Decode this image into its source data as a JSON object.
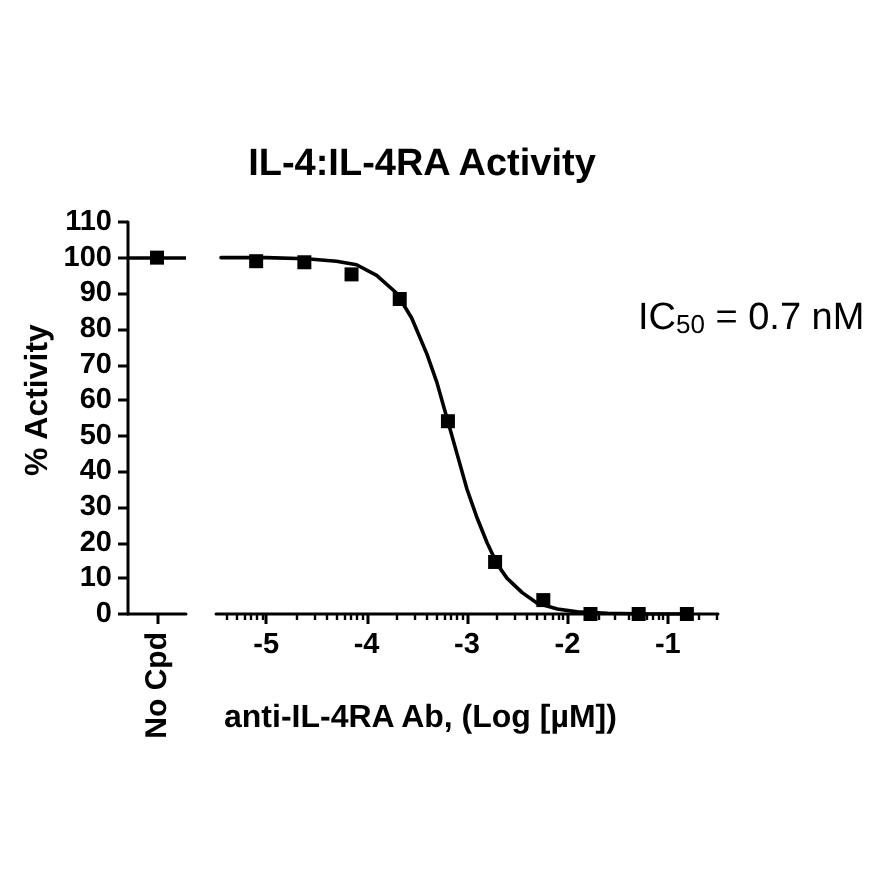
{
  "chart_data": [
    {
      "type": "scatter",
      "ylabel": "% Activity",
      "categories": [
        "No Cpd"
      ],
      "values": [
        100
      ],
      "color": "#000000",
      "marker": "square",
      "ylim": [
        0,
        110
      ],
      "yticks": [
        0,
        10,
        20,
        30,
        40,
        50,
        60,
        70,
        80,
        90,
        100,
        110
      ],
      "ref_lines": [
        {
          "axis": "y",
          "value": 100,
          "color": "#000000"
        }
      ]
    },
    {
      "type": "scatter",
      "title": "IL-4:IL-4RA Activity",
      "xlabel": "anti-IL-4RA Ab, (Log [µM])",
      "annotations": [
        "IC$_{50}$ = 0.7 nM"
      ],
      "xlim": [
        -5.5,
        -0.5
      ],
      "ylim": [
        0,
        110
      ],
      "tick_labels": "x",
      "xticks": [
        {
          "value": -5.398,
          "label": null
        },
        {
          "value": -5.301,
          "label": null
        },
        {
          "value": -5.222,
          "label": null
        },
        {
          "value": -5.155,
          "label": null
        },
        {
          "value": -5.097,
          "label": null
        },
        {
          "value": -5.046,
          "label": null
        },
        -5,
        {
          "value": -4.699,
          "label": null
        },
        {
          "value": -4.523,
          "label": null
        },
        {
          "value": -4.398,
          "label": null
        },
        {
          "value": -4.301,
          "label": null
        },
        {
          "value": -4.222,
          "label": null
        },
        {
          "value": -4.155,
          "label": null
        },
        {
          "value": -4.097,
          "label": null
        },
        {
          "value": -4.046,
          "label": null
        },
        -4,
        {
          "value": -3.699,
          "label": null
        },
        {
          "value": -3.523,
          "label": null
        },
        {
          "value": -3.398,
          "label": null
        },
        {
          "value": -3.301,
          "label": null
        },
        {
          "value": -3.222,
          "label": null
        },
        {
          "value": -3.155,
          "label": null
        },
        {
          "value": -3.097,
          "label": null
        },
        {
          "value": -3.046,
          "label": null
        },
        -3,
        {
          "value": -2.699,
          "label": null
        },
        {
          "value": -2.523,
          "label": null
        },
        {
          "value": -2.398,
          "label": null
        },
        {
          "value": -2.301,
          "label": null
        },
        {
          "value": -2.222,
          "label": null
        },
        {
          "value": -2.155,
          "label": null
        },
        {
          "value": -2.097,
          "label": null
        },
        {
          "value": -2.046,
          "label": null
        },
        -2,
        {
          "value": -1.699,
          "label": null
        },
        {
          "value": -1.523,
          "label": null
        },
        {
          "value": -1.398,
          "label": null
        },
        {
          "value": -1.301,
          "label": null
        },
        {
          "value": -1.222,
          "label": null
        },
        {
          "value": -1.155,
          "label": null
        },
        {
          "value": -1.097,
          "label": null
        },
        {
          "value": -1.046,
          "label": null
        },
        -1,
        {
          "value": -0.699,
          "label": null
        },
        {
          "value": -0.523,
          "label": null
        }
      ],
      "series": [
        {
          "marker": "square",
          "color": "#000000",
          "x": [
            -5.1,
            -4.62,
            -4.15,
            -3.67,
            -3.19,
            -2.72,
            -2.24,
            -1.77,
            -1.29,
            -0.81
          ],
          "values": [
            99,
            98.7,
            95.3,
            88.4,
            54.1,
            14.6,
            3.9,
            0,
            0,
            0
          ]
        },
        {
          "type": "line",
          "marker": "none",
          "color": "#000000",
          "x": [
            -5.45,
            -5.0,
            -4.6,
            -4.3,
            -4.1,
            -3.9,
            -3.7,
            -3.55,
            -3.4,
            -3.3,
            -3.2,
            -3.1,
            -3.0,
            -2.9,
            -2.8,
            -2.7,
            -2.6,
            -2.45,
            -2.3,
            -2.1,
            -1.9,
            -1.6,
            -1.2,
            -0.8
          ],
          "values": [
            100,
            100,
            99.7,
            99,
            98,
            95,
            90,
            83,
            73,
            65,
            55,
            45,
            35,
            27,
            20,
            14,
            10,
            6,
            3,
            1.4,
            0.6,
            0.2,
            0,
            0
          ]
        }
      ]
    }
  ]
}
